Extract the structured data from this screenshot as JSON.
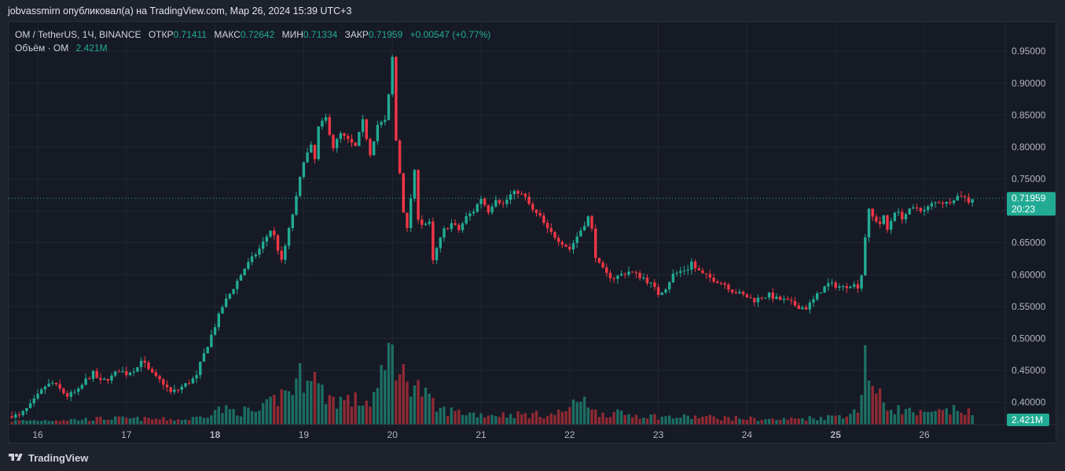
{
  "header": {
    "text": "jobvassmirn опубликовал(а) на TradingView.com, Мар 26, 2024 15:39 UTC+3"
  },
  "legend": {
    "symbol": "OM / TetherUS, 1Ч, BINANCE",
    "open_label": "ОТКР",
    "open": "0.71411",
    "high_label": "МАКС",
    "high": "0.72642",
    "low_label": "МИН",
    "low": "0.71334",
    "close_label": "ЗАКР",
    "close": "0.71959",
    "change": "+0.00547 (+0.77%)",
    "volume_label": "Объём · OM",
    "volume": "2.421M"
  },
  "price_axis": {
    "ticks": [
      "0.95000",
      "0.90000",
      "0.85000",
      "0.80000",
      "0.75000",
      "0.70000",
      "0.65000",
      "0.60000",
      "0.55000",
      "0.50000",
      "0.45000",
      "0.40000"
    ],
    "last_price_label": "0.71959",
    "countdown_label": "20:23",
    "volume_label": "2.421M"
  },
  "colors": {
    "up": "#22ab94",
    "down": "#f23645",
    "up_volume": "#1d6e62",
    "down_volume": "#8f2a33",
    "grid": "#232733",
    "background": "#161a25"
  },
  "footer": {
    "brand": "TradingView"
  },
  "chart_data": {
    "type": "candlestick",
    "title": "OM / TetherUS, 1Ч, BINANCE",
    "interval": "1h",
    "ylim": [
      0.365,
      0.965
    ],
    "x_ticks": [
      {
        "label": "16",
        "hour": 0,
        "bold": false
      },
      {
        "label": "17",
        "hour": 24,
        "bold": false
      },
      {
        "label": "18",
        "hour": 48,
        "bold": true
      },
      {
        "label": "19",
        "hour": 72,
        "bold": false
      },
      {
        "label": "20",
        "hour": 96,
        "bold": false
      },
      {
        "label": "21",
        "hour": 120,
        "bold": false
      },
      {
        "label": "22",
        "hour": 144,
        "bold": false
      },
      {
        "label": "23",
        "hour": 168,
        "bold": false
      },
      {
        "label": "24",
        "hour": 192,
        "bold": false
      },
      {
        "label": "25",
        "hour": 216,
        "bold": true
      },
      {
        "label": "26",
        "hour": 240,
        "bold": false
      }
    ],
    "first_candle_hour": -7,
    "close_anchors": [
      [
        -7,
        0.38
      ],
      [
        -5,
        0.378
      ],
      [
        -2,
        0.395
      ],
      [
        2,
        0.425
      ],
      [
        4,
        0.43
      ],
      [
        6,
        0.42
      ],
      [
        8,
        0.41
      ],
      [
        11,
        0.418
      ],
      [
        13,
        0.435
      ],
      [
        15,
        0.445
      ],
      [
        17,
        0.432
      ],
      [
        20,
        0.44
      ],
      [
        22,
        0.45
      ],
      [
        24,
        0.445
      ],
      [
        27,
        0.455
      ],
      [
        28,
        0.468
      ],
      [
        30,
        0.45
      ],
      [
        32,
        0.438
      ],
      [
        34,
        0.43
      ],
      [
        36,
        0.415
      ],
      [
        38,
        0.42
      ],
      [
        40,
        0.428
      ],
      [
        43,
        0.44
      ],
      [
        44,
        0.46
      ],
      [
        46,
        0.49
      ],
      [
        48,
        0.52
      ],
      [
        50,
        0.55
      ],
      [
        52,
        0.57
      ],
      [
        54,
        0.59
      ],
      [
        56,
        0.61
      ],
      [
        58,
        0.625
      ],
      [
        60,
        0.64
      ],
      [
        62,
        0.66
      ],
      [
        63,
        0.67
      ],
      [
        64,
        0.66
      ],
      [
        66,
        0.62
      ],
      [
        68,
        0.67
      ],
      [
        70,
        0.72
      ],
      [
        72,
        0.78
      ],
      [
        74,
        0.8
      ],
      [
        75,
        0.78
      ],
      [
        76,
        0.83
      ],
      [
        78,
        0.845
      ],
      [
        80,
        0.8
      ],
      [
        82,
        0.82
      ],
      [
        84,
        0.81
      ],
      [
        86,
        0.8
      ],
      [
        88,
        0.84
      ],
      [
        90,
        0.79
      ],
      [
        92,
        0.835
      ],
      [
        94,
        0.84
      ],
      [
        95,
        0.88
      ],
      [
        96,
        0.94
      ],
      [
        97,
        0.81
      ],
      [
        98,
        0.76
      ],
      [
        99,
        0.7
      ],
      [
        100,
        0.67
      ],
      [
        101,
        0.72
      ],
      [
        102,
        0.76
      ],
      [
        103,
        0.69
      ],
      [
        104,
        0.68
      ],
      [
        106,
        0.68
      ],
      [
        107,
        0.62
      ],
      [
        108,
        0.64
      ],
      [
        110,
        0.67
      ],
      [
        112,
        0.68
      ],
      [
        114,
        0.67
      ],
      [
        116,
        0.69
      ],
      [
        118,
        0.7
      ],
      [
        120,
        0.72
      ],
      [
        122,
        0.7
      ],
      [
        124,
        0.72
      ],
      [
        126,
        0.71
      ],
      [
        128,
        0.725
      ],
      [
        130,
        0.73
      ],
      [
        132,
        0.72
      ],
      [
        134,
        0.7
      ],
      [
        136,
        0.69
      ],
      [
        138,
        0.67
      ],
      [
        140,
        0.66
      ],
      [
        142,
        0.65
      ],
      [
        144,
        0.64
      ],
      [
        146,
        0.66
      ],
      [
        148,
        0.68
      ],
      [
        149,
        0.69
      ],
      [
        150,
        0.67
      ],
      [
        151,
        0.63
      ],
      [
        152,
        0.615
      ],
      [
        154,
        0.6
      ],
      [
        156,
        0.595
      ],
      [
        158,
        0.6
      ],
      [
        160,
        0.605
      ],
      [
        162,
        0.6
      ],
      [
        164,
        0.595
      ],
      [
        166,
        0.585
      ],
      [
        168,
        0.57
      ],
      [
        170,
        0.58
      ],
      [
        172,
        0.6
      ],
      [
        174,
        0.605
      ],
      [
        176,
        0.61
      ],
      [
        177,
        0.62
      ],
      [
        178,
        0.61
      ],
      [
        180,
        0.6
      ],
      [
        182,
        0.595
      ],
      [
        184,
        0.59
      ],
      [
        186,
        0.585
      ],
      [
        188,
        0.575
      ],
      [
        190,
        0.57
      ],
      [
        192,
        0.565
      ],
      [
        194,
        0.56
      ],
      [
        196,
        0.565
      ],
      [
        198,
        0.568
      ],
      [
        200,
        0.562
      ],
      [
        202,
        0.56
      ],
      [
        204,
        0.555
      ],
      [
        206,
        0.55
      ],
      [
        208,
        0.548
      ],
      [
        210,
        0.56
      ],
      [
        212,
        0.575
      ],
      [
        214,
        0.585
      ],
      [
        216,
        0.583
      ],
      [
        218,
        0.58
      ],
      [
        220,
        0.585
      ],
      [
        222,
        0.582
      ],
      [
        223,
        0.6
      ],
      [
        224,
        0.66
      ],
      [
        225,
        0.7
      ],
      [
        226,
        0.69
      ],
      [
        228,
        0.68
      ],
      [
        229,
        0.69
      ],
      [
        230,
        0.67
      ],
      [
        232,
        0.7
      ],
      [
        234,
        0.69
      ],
      [
        236,
        0.7
      ],
      [
        238,
        0.705
      ],
      [
        240,
        0.7
      ],
      [
        242,
        0.71
      ],
      [
        244,
        0.715
      ],
      [
        246,
        0.712
      ],
      [
        248,
        0.72
      ],
      [
        250,
        0.725
      ],
      [
        252,
        0.715
      ],
      [
        253,
        0.72
      ]
    ],
    "volume_anchors": [
      [
        -7,
        0.15
      ],
      [
        10,
        0.2
      ],
      [
        20,
        0.25
      ],
      [
        40,
        0.2
      ],
      [
        44,
        0.3
      ],
      [
        46,
        0.45
      ],
      [
        48,
        0.6
      ],
      [
        60,
        0.5
      ],
      [
        66,
        1.2
      ],
      [
        70,
        1.6
      ],
      [
        74,
        2.5
      ],
      [
        76,
        1.4
      ],
      [
        80,
        1.0
      ],
      [
        90,
        0.9
      ],
      [
        94,
        2.0
      ],
      [
        96,
        3.5
      ],
      [
        98,
        1.8
      ],
      [
        100,
        2.0
      ],
      [
        104,
        1.3
      ],
      [
        108,
        0.6
      ],
      [
        120,
        0.4
      ],
      [
        140,
        0.4
      ],
      [
        146,
        0.8
      ],
      [
        148,
        1.4
      ],
      [
        150,
        0.5
      ],
      [
        160,
        0.4
      ],
      [
        170,
        0.3
      ],
      [
        180,
        0.3
      ],
      [
        200,
        0.2
      ],
      [
        214,
        0.3
      ],
      [
        222,
        0.5
      ],
      [
        224,
        3.0
      ],
      [
        226,
        1.4
      ],
      [
        230,
        0.7
      ],
      [
        240,
        0.4
      ],
      [
        250,
        0.6
      ],
      [
        253,
        0.4
      ]
    ],
    "volume_ylim": [
      0,
      3.5
    ],
    "last_close": 0.71959
  }
}
